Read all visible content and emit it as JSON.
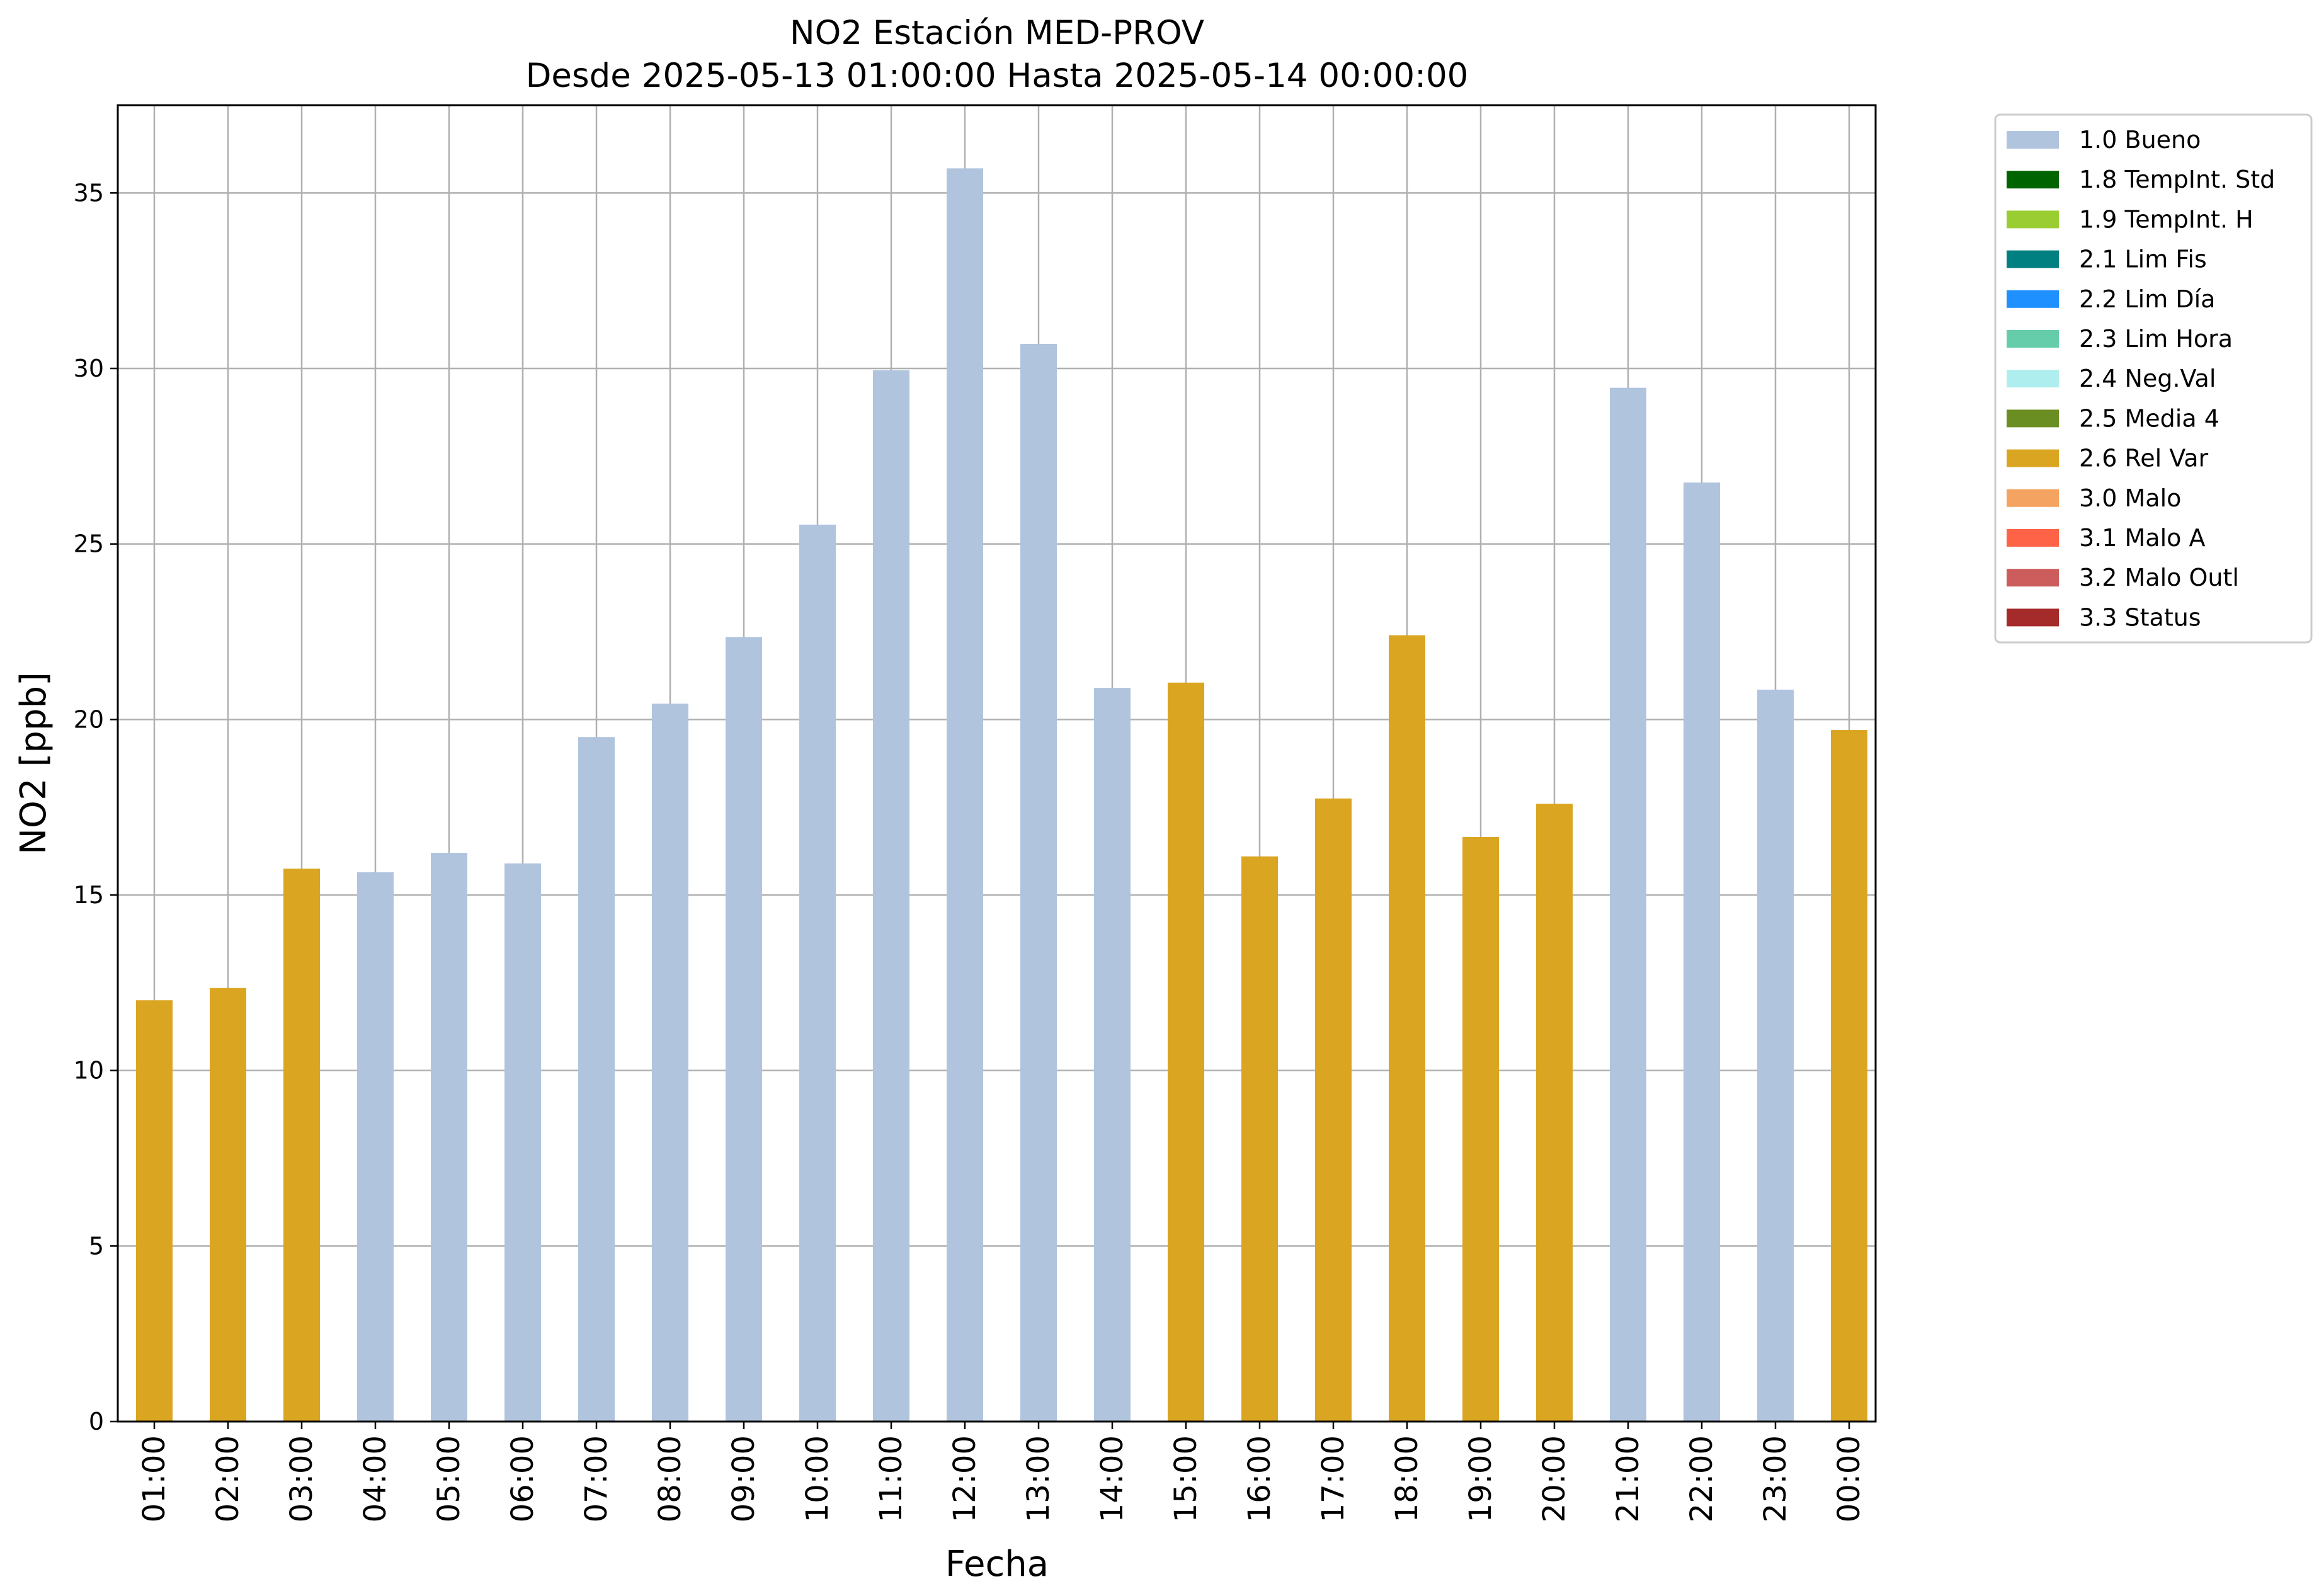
{
  "chart_data": {
    "type": "bar",
    "title": "NO2 Estación MED-PROV",
    "subtitle": "Desde 2025-05-13 01:00:00 Hasta 2025-05-14 00:00:00",
    "xlabel": "Fecha",
    "ylabel": "NO2 [ppb]",
    "ylim": [
      0,
      37.5
    ],
    "yticks": [
      0,
      5,
      10,
      15,
      20,
      25,
      30,
      35
    ],
    "grid": true,
    "legend_position": "outside top-right",
    "categories": [
      "01:00",
      "02:00",
      "03:00",
      "04:00",
      "05:00",
      "06:00",
      "07:00",
      "08:00",
      "09:00",
      "10:00",
      "11:00",
      "12:00",
      "13:00",
      "14:00",
      "15:00",
      "16:00",
      "17:00",
      "18:00",
      "19:00",
      "20:00",
      "21:00",
      "22:00",
      "23:00",
      "00:00"
    ],
    "values": [
      12.0,
      12.35,
      15.75,
      15.65,
      16.2,
      15.9,
      19.5,
      20.45,
      22.35,
      25.55,
      29.95,
      35.7,
      30.7,
      20.9,
      21.05,
      16.1,
      17.75,
      22.4,
      16.65,
      17.6,
      29.45,
      26.75,
      20.85,
      19.7
    ],
    "flags": [
      "2.6 Rel Var",
      "2.6 Rel Var",
      "2.6 Rel Var",
      "1.0 Bueno",
      "1.0 Bueno",
      "1.0 Bueno",
      "1.0 Bueno",
      "1.0 Bueno",
      "1.0 Bueno",
      "1.0 Bueno",
      "1.0 Bueno",
      "1.0 Bueno",
      "1.0 Bueno",
      "1.0 Bueno",
      "2.6 Rel Var",
      "2.6 Rel Var",
      "2.6 Rel Var",
      "2.6 Rel Var",
      "2.6 Rel Var",
      "2.6 Rel Var",
      "1.0 Bueno",
      "1.0 Bueno",
      "1.0 Bueno",
      "2.6 Rel Var"
    ],
    "legend": [
      {
        "label": "1.0 Bueno",
        "color": "#b0c4de"
      },
      {
        "label": "1.8 TempInt. Std",
        "color": "#006400"
      },
      {
        "label": "1.9 TempInt. H",
        "color": "#9acd32"
      },
      {
        "label": "2.1 Lim Fis",
        "color": "#008080"
      },
      {
        "label": "2.2 Lim Día",
        "color": "#1e90ff"
      },
      {
        "label": "2.3 Lim Hora",
        "color": "#66cdaa"
      },
      {
        "label": "2.4 Neg.Val",
        "color": "#afeeee"
      },
      {
        "label": "2.5 Media 4",
        "color": "#6b8e23"
      },
      {
        "label": "2.6 Rel Var",
        "color": "#daa520"
      },
      {
        "label": "3.0 Malo",
        "color": "#f4a460"
      },
      {
        "label": "3.1 Malo A",
        "color": "#ff6347"
      },
      {
        "label": "3.2 Malo Outl",
        "color": "#cd5c5c"
      },
      {
        "label": "3.3 Status",
        "color": "#a52a2a"
      }
    ]
  }
}
